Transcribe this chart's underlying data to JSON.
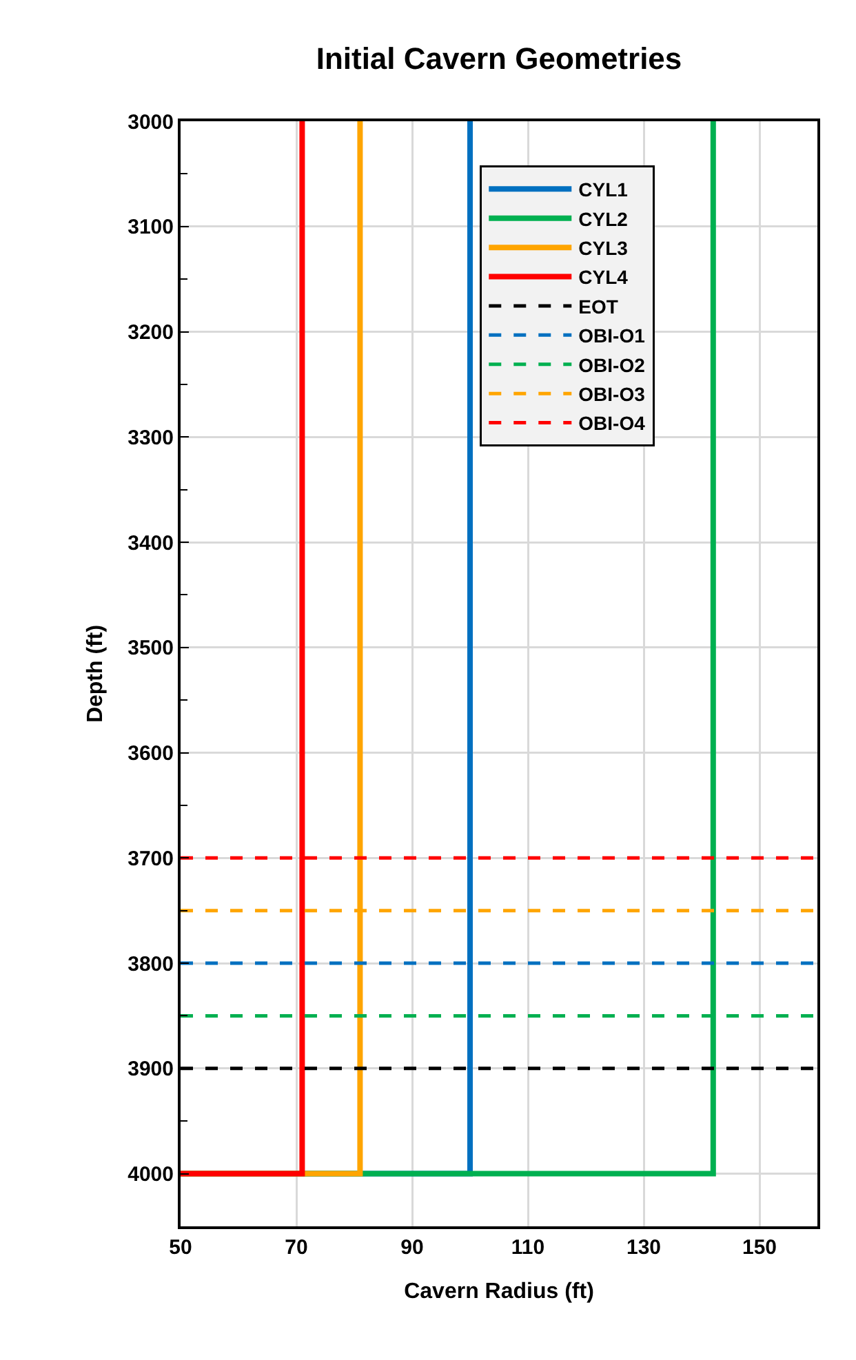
{
  "chart_data": {
    "type": "line",
    "title": "Initial Cavern Geometries",
    "xlabel": "Cavern Radius (ft)",
    "ylabel": "Depth (ft)",
    "xlim": [
      50,
      160
    ],
    "xticks": [
      50,
      70,
      90,
      110,
      130,
      150
    ],
    "ylim": [
      4050,
      3000
    ],
    "yticks": [
      3000,
      3100,
      3200,
      3300,
      3400,
      3500,
      3600,
      3700,
      3800,
      3900,
      4000
    ],
    "grid": true,
    "legend": "top right",
    "marker": "none",
    "series": [
      {
        "name": "CYL1",
        "color": "#0070c0",
        "line_style": "solid",
        "x": [
          100,
          100,
          50
        ],
        "values": [
          3000,
          4000,
          4000
        ]
      },
      {
        "name": "CYL2",
        "color": "#00b050",
        "line_style": "solid",
        "x": [
          142,
          142,
          50
        ],
        "values": [
          3000,
          4000,
          4000
        ]
      },
      {
        "name": "CYL3",
        "color": "#ffa500",
        "line_style": "solid",
        "x": [
          81,
          81,
          50
        ],
        "values": [
          3000,
          4000,
          4000
        ]
      },
      {
        "name": "CYL4",
        "color": "#ff0000",
        "line_style": "solid",
        "x": [
          71,
          71,
          50
        ],
        "values": [
          3000,
          4000,
          4000
        ]
      },
      {
        "name": "EOT",
        "color": "#000000",
        "line_style": "dashed",
        "x": [
          50,
          160
        ],
        "values": [
          3900,
          3900
        ]
      },
      {
        "name": "OBI-O1",
        "color": "#0070c0",
        "line_style": "dashed",
        "x": [
          50,
          160
        ],
        "values": [
          3800,
          3800
        ]
      },
      {
        "name": "OBI-O2",
        "color": "#00b050",
        "line_style": "dashed",
        "x": [
          50,
          160
        ],
        "values": [
          3850,
          3850
        ]
      },
      {
        "name": "OBI-O3",
        "color": "#ffa500",
        "line_style": "dashed",
        "x": [
          50,
          160
        ],
        "values": [
          3750,
          3750
        ]
      },
      {
        "name": "OBI-O4",
        "color": "#ff0000",
        "line_style": "dashed",
        "x": [
          50,
          160
        ],
        "values": [
          3700,
          3700
        ]
      }
    ]
  }
}
